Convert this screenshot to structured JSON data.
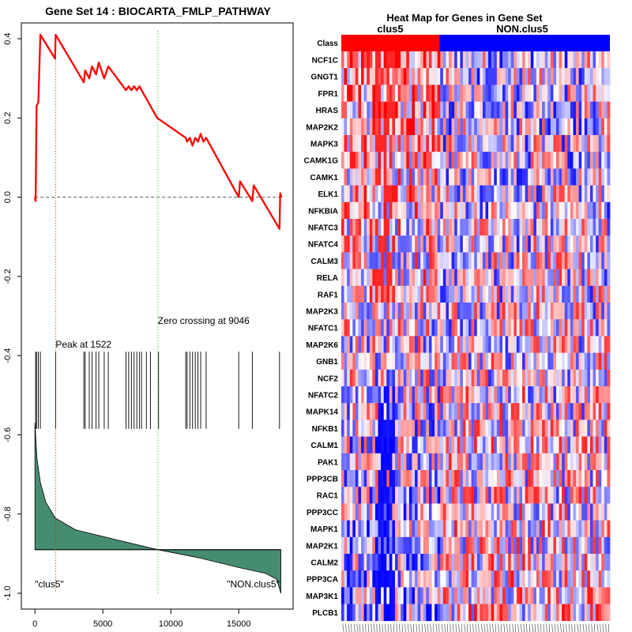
{
  "chart_data": [
    {
      "type": "line",
      "title": "Gene Set  14 : BIOCARTA_FMLP_PATHWAY",
      "xlabel": "",
      "ylabel": "",
      "xlim": [
        -1000,
        19000
      ],
      "ylim": [
        -1.04,
        0.44
      ],
      "x_ticks": [
        0,
        5000,
        10000,
        15000
      ],
      "y_ticks": [
        0.4,
        0.2,
        0.0,
        -0.2,
        -0.4,
        -0.6,
        -0.8,
        -1.0
      ],
      "x_tick_labels": [
        "0",
        "5000",
        "10000",
        "15000"
      ],
      "y_tick_labels": [
        "0.4",
        "0.2",
        "0.0",
        "-0.2",
        "-0.4",
        "-0.6",
        "-0.8",
        "-1.0"
      ],
      "series": [
        {
          "name": "running enrichment score",
          "color": "#ff0000",
          "points": [
            [
              0,
              0.0
            ],
            [
              50,
              -0.01
            ],
            [
              120,
              0.23
            ],
            [
              250,
              0.24
            ],
            [
              400,
              0.41
            ],
            [
              1480,
              0.35
            ],
            [
              1522,
              0.41
            ],
            [
              3600,
              0.29
            ],
            [
              3700,
              0.32
            ],
            [
              4000,
              0.3
            ],
            [
              4200,
              0.33
            ],
            [
              4500,
              0.31
            ],
            [
              4700,
              0.34
            ],
            [
              5100,
              0.3
            ],
            [
              5400,
              0.33
            ],
            [
              6700,
              0.27
            ],
            [
              6900,
              0.28
            ],
            [
              7100,
              0.27
            ],
            [
              7300,
              0.28
            ],
            [
              7500,
              0.27
            ],
            [
              7700,
              0.28
            ],
            [
              7850,
              0.27
            ],
            [
              9000,
              0.2
            ],
            [
              11100,
              0.15
            ],
            [
              11200,
              0.14
            ],
            [
              11400,
              0.15
            ],
            [
              11600,
              0.13
            ],
            [
              11800,
              0.15
            ],
            [
              12000,
              0.14
            ],
            [
              12200,
              0.16
            ],
            [
              12400,
              0.14
            ],
            [
              12600,
              0.15
            ],
            [
              15000,
              0.0
            ],
            [
              15100,
              0.04
            ],
            [
              16000,
              -0.01
            ],
            [
              16100,
              0.03
            ],
            [
              18000,
              -0.08
            ],
            [
              18050,
              0.01
            ],
            [
              18150,
              0.0
            ]
          ]
        }
      ],
      "baseline": 0.0,
      "peak": {
        "x": 1522,
        "label": "Peak at 1522",
        "color": "#ff0000"
      },
      "zero_crossing": {
        "x": 9046,
        "label": "Zero crossing at 9046",
        "color": "#00bb00"
      },
      "gene_hits": [
        50,
        120,
        250,
        400,
        1522,
        3600,
        3700,
        4000,
        4200,
        4500,
        4700,
        5100,
        5400,
        6700,
        6900,
        7100,
        7300,
        7500,
        7700,
        7850,
        8200,
        8500,
        9100,
        11100,
        11200,
        11400,
        11600,
        11800,
        12000,
        12200,
        12600,
        15000,
        16000,
        18000
      ],
      "ranked_metric": {
        "color": "#468c71",
        "baseline": -0.89,
        "points": [
          [
            0,
            -0.57
          ],
          [
            150,
            -0.66
          ],
          [
            400,
            -0.72
          ],
          [
            800,
            -0.77
          ],
          [
            1500,
            -0.81
          ],
          [
            3000,
            -0.84
          ],
          [
            6000,
            -0.865
          ],
          [
            9046,
            -0.89
          ],
          [
            12000,
            -0.91
          ],
          [
            15000,
            -0.935
          ],
          [
            17000,
            -0.95
          ],
          [
            17800,
            -0.965
          ],
          [
            18100,
            -1.0
          ]
        ]
      },
      "class_labels": [
        "\"clus5\"",
        "\"NON.clus5\""
      ]
    },
    {
      "type": "heatmap",
      "title": "Heat Map for Genes in Gene Set",
      "class_row_label": "Class",
      "class_labels": [
        "clus5",
        "NON.clus5"
      ],
      "class_colors": [
        "#ff0000",
        "#0000ff"
      ],
      "class_split_fraction": 0.365,
      "columns": 95,
      "genes": [
        "NCF1C",
        "GNGT1",
        "FPR1",
        "HRAS",
        "MAP2K2",
        "MAPK3",
        "CAMK1G",
        "CAMK1",
        "ELK1",
        "NFKBIA",
        "NFATC3",
        "NFATC4",
        "CALM3",
        "RELA",
        "RAF1",
        "MAP2K3",
        "NFATC1",
        "MAP2K6",
        "GNB1",
        "NCF2",
        "NFATC2",
        "MAPK14",
        "NFKB1",
        "CALM1",
        "PAK1",
        "PPP3CB",
        "RAC1",
        "PPP3CC",
        "MAPK1",
        "MAP2K1",
        "CALM2",
        "PPP3CA",
        "MAP3K1",
        "PLCB1"
      ]
    }
  ]
}
